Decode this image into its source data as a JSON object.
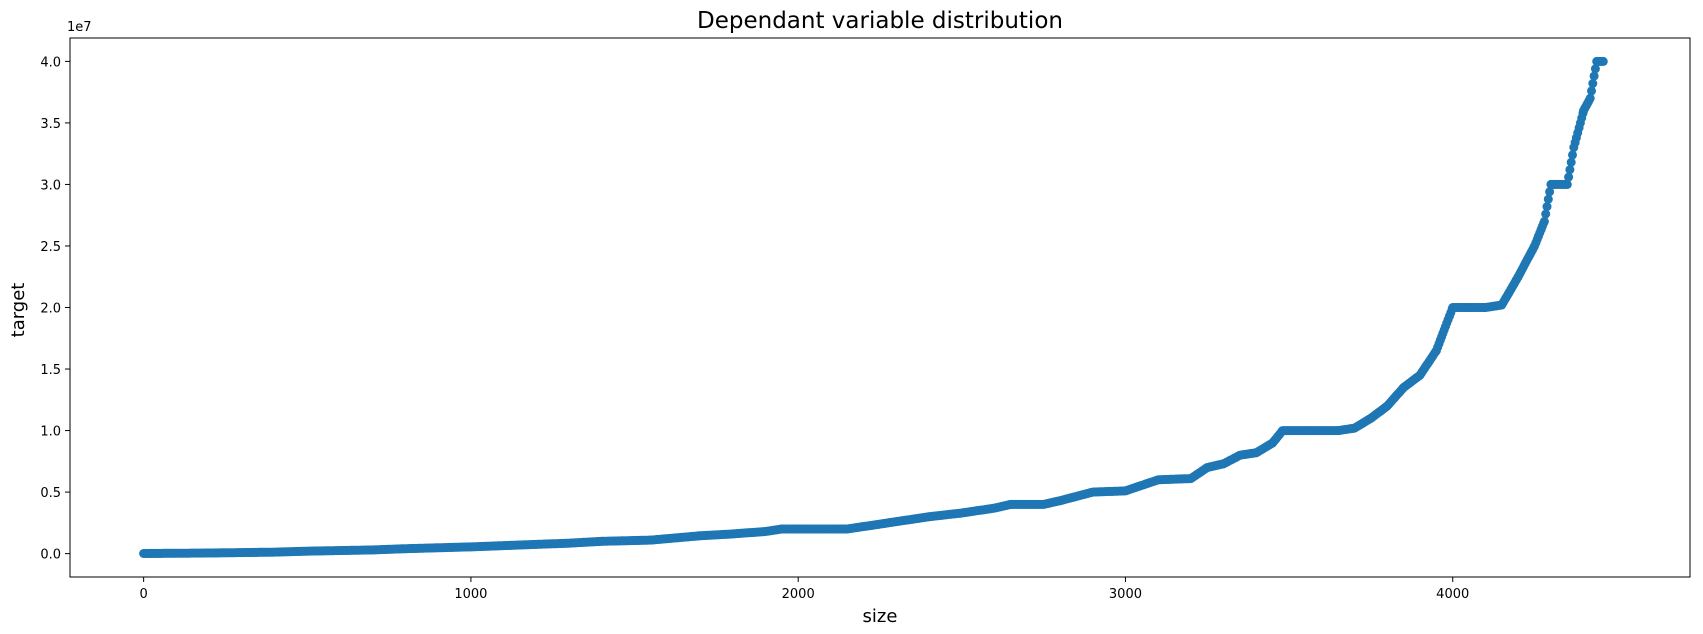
{
  "chart_data": {
    "type": "scatter",
    "title": "Dependant variable distribution",
    "xlabel": "size",
    "ylabel": "target",
    "y_offset_label": "1e7",
    "y_scale_factor": 10000000,
    "xlim": [
      -225,
      4725
    ],
    "ylim": [
      -1900000,
      41900000
    ],
    "xticks": [
      0,
      1000,
      2000,
      3000,
      4000
    ],
    "xtick_labels": [
      "0",
      "1000",
      "2000",
      "3000",
      "4000"
    ],
    "yticks": [
      0,
      5000000,
      10000000,
      15000000,
      20000000,
      25000000,
      30000000,
      35000000,
      40000000
    ],
    "ytick_labels": [
      "0.0",
      "0.5",
      "1.0",
      "1.5",
      "2.0",
      "2.5",
      "3.0",
      "3.5",
      "4.0"
    ],
    "grid": false,
    "marker_color": "#1f77b4",
    "curve_x": [
      0,
      200,
      400,
      500,
      700,
      800,
      1000,
      1100,
      1200,
      1300,
      1400,
      1550,
      1700,
      1800,
      1900,
      1950,
      2000,
      2150,
      2200,
      2300,
      2350,
      2400,
      2500,
      2600,
      2650,
      2750,
      2800,
      2900,
      3000,
      3100,
      3200,
      3250,
      3300,
      3350,
      3400,
      3450,
      3480,
      3550,
      3650,
      3700,
      3750,
      3800,
      3850,
      3900,
      3950,
      4000,
      4050,
      4100,
      4150,
      4200,
      4250,
      4280,
      4300,
      4350,
      4370,
      4400,
      4420,
      4440,
      4460
    ],
    "curve_y": [
      10000,
      50000,
      120000,
      200000,
      300000,
      400000,
      550000,
      650000,
      750000,
      850000,
      1000000,
      1100000,
      1450000,
      1600000,
      1800000,
      2000000,
      2000000,
      2000000,
      2200000,
      2600000,
      2800000,
      3000000,
      3300000,
      3700000,
      4000000,
      4000000,
      4300000,
      5000000,
      5100000,
      6000000,
      6100000,
      7000000,
      7300000,
      8000000,
      8200000,
      9000000,
      10000000,
      10000000,
      10000000,
      10200000,
      11000000,
      12000000,
      13500000,
      14500000,
      16500000,
      20000000,
      20000000,
      20000000,
      20200000,
      22500000,
      25000000,
      27000000,
      30000000,
      30000000,
      33000000,
      36000000,
      37000000,
      40000000,
      40000000
    ]
  }
}
